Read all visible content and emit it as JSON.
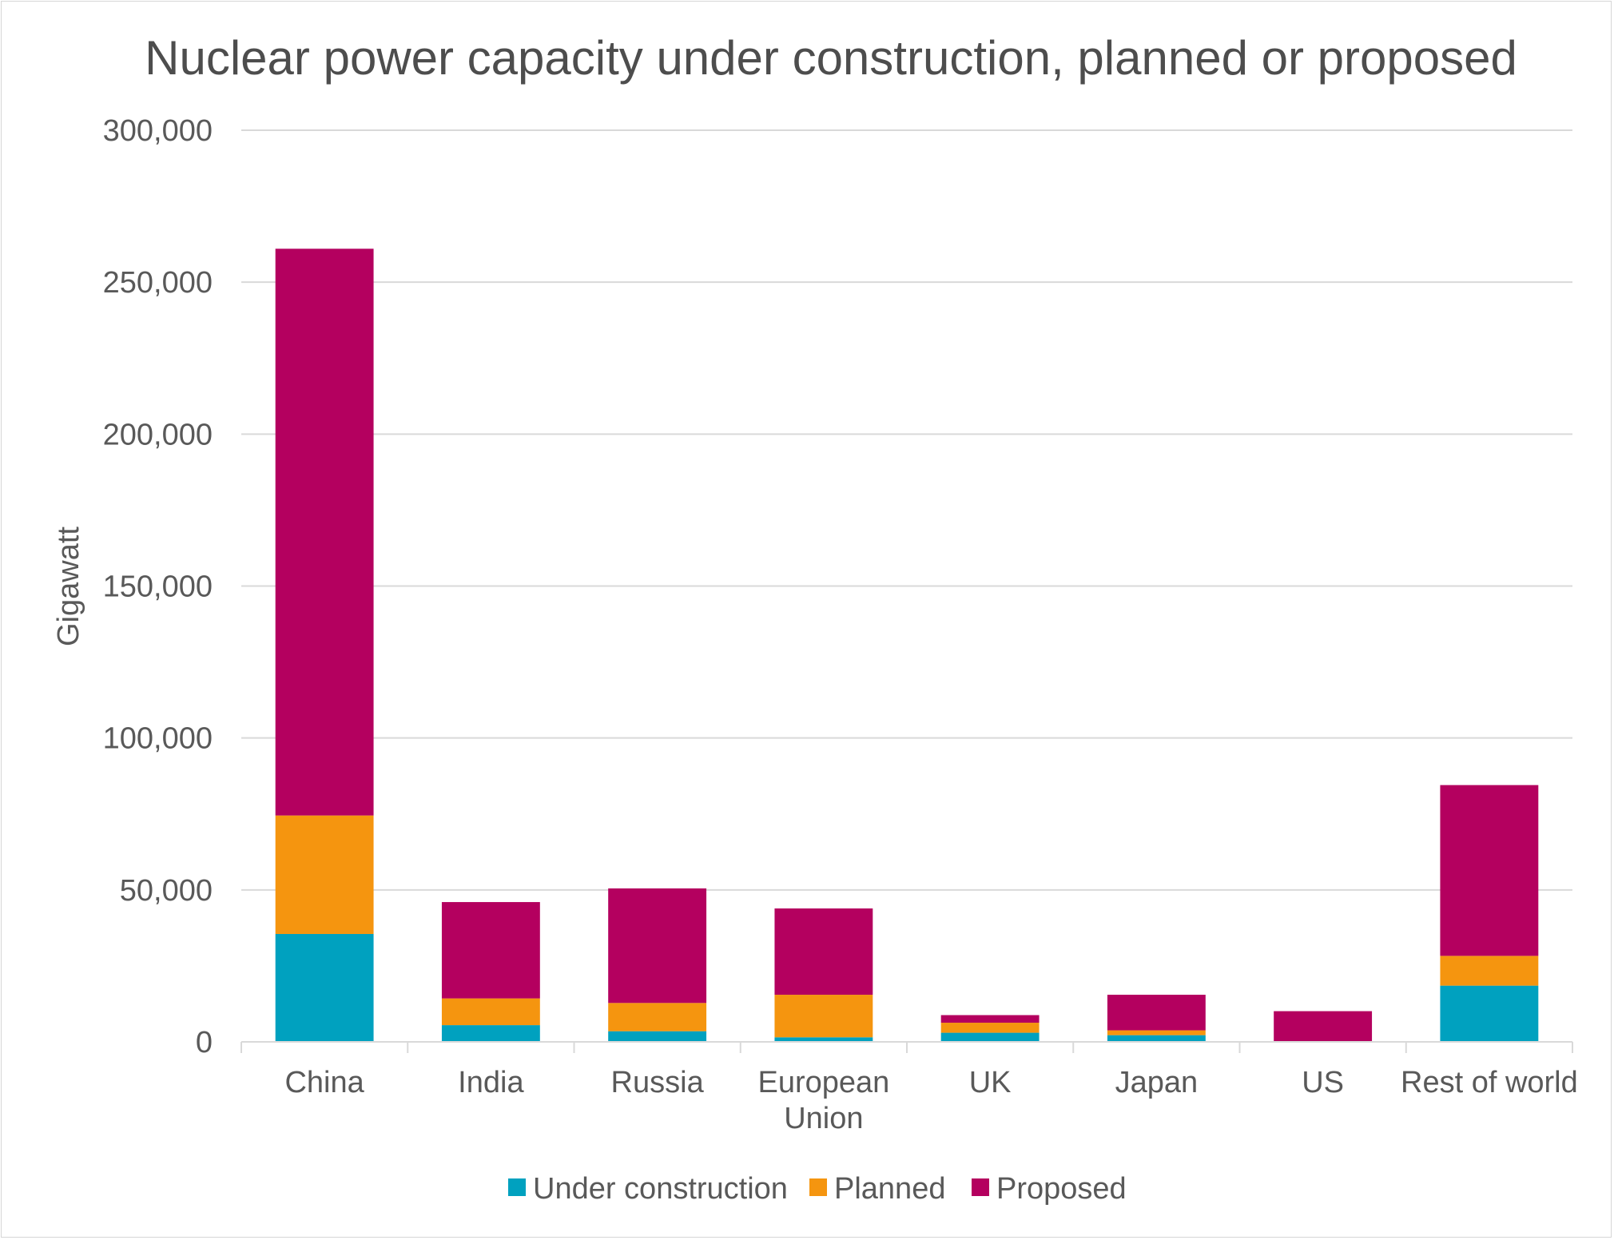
{
  "chart_data": {
    "type": "bar",
    "stacked": true,
    "title": "Nuclear power capacity under construction, planned or proposed",
    "xlabel": "",
    "ylabel": "Gigawatt",
    "ylim": [
      0,
      300000
    ],
    "yticks": [
      0,
      50000,
      100000,
      150000,
      200000,
      250000,
      300000
    ],
    "ytick_labels": [
      "0",
      "50,000",
      "100,000",
      "150,000",
      "200,000",
      "250,000",
      "300,000"
    ],
    "grid": true,
    "legend_position": "bottom",
    "categories": [
      [
        "China"
      ],
      [
        "India"
      ],
      [
        "Russia"
      ],
      [
        "European",
        "Union"
      ],
      [
        "UK"
      ],
      [
        "Japan"
      ],
      [
        "US"
      ],
      [
        "Rest of world"
      ]
    ],
    "series": [
      {
        "name": "Under construction",
        "color": "#00A1BF",
        "values": [
          35500,
          5500,
          3500,
          1500,
          3000,
          2200,
          0,
          18500
        ]
      },
      {
        "name": "Planned",
        "color": "#F5950F",
        "values": [
          39000,
          8800,
          9300,
          14000,
          3300,
          1600,
          0,
          9800
        ]
      },
      {
        "name": "Proposed",
        "color": "#B4005F",
        "values": [
          186500,
          31700,
          37700,
          28400,
          2500,
          11700,
          10100,
          56200
        ]
      }
    ]
  }
}
